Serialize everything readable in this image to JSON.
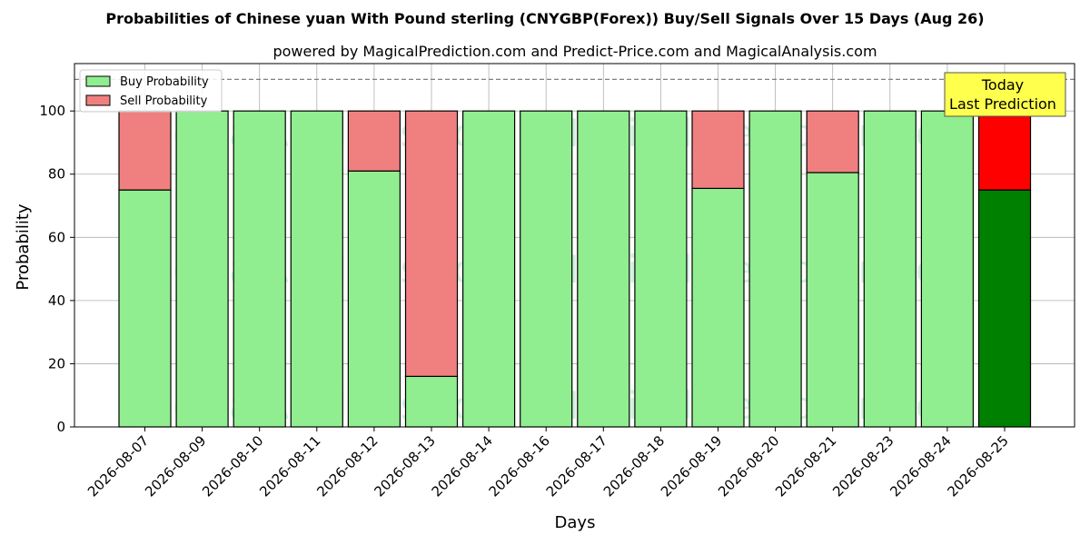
{
  "chart_data": {
    "type": "bar",
    "stacked": true,
    "title": "Probabilities of Chinese yuan With Pound sterling (CNYGBP(Forex)) Buy/Sell Signals Over 15 Days (Aug 26)",
    "subtitle": "powered by MagicalPrediction.com and Predict-Price.com and MagicalAnalysis.com",
    "xlabel": "Days",
    "ylabel": "Probability",
    "ylim": [
      0,
      115
    ],
    "yticks": [
      0,
      20,
      40,
      60,
      80,
      100
    ],
    "grid": true,
    "reference_line": 110,
    "legend_position": "top-left",
    "categories": [
      "2026-08-07",
      "2026-08-09",
      "2026-08-10",
      "2026-08-11",
      "2026-08-12",
      "2026-08-13",
      "2026-08-14",
      "2026-08-16",
      "2026-08-17",
      "2026-08-18",
      "2026-08-19",
      "2026-08-20",
      "2026-08-21",
      "2026-08-23",
      "2026-08-24",
      "2026-08-25"
    ],
    "series": [
      {
        "name": "Buy Probability",
        "color": "#90ee90",
        "highlight_color": "#008000",
        "values": [
          75,
          100,
          100,
          100,
          81,
          16,
          100,
          100,
          100,
          100,
          75.5,
          100,
          80.5,
          100,
          100,
          75
        ]
      },
      {
        "name": "Sell Probability",
        "color": "#f08080",
        "highlight_color": "#ff0000",
        "values": [
          25,
          0,
          0,
          0,
          19,
          84,
          0,
          0,
          0,
          0,
          24.5,
          0,
          19.5,
          0,
          0,
          25
        ]
      }
    ],
    "highlight_index": 15,
    "annotation": {
      "lines": [
        "Today",
        "Last Prediction"
      ],
      "bg": "#ffff4d"
    },
    "watermarks": [
      "MagicalAnalysis.com",
      "MagicalPrediction.com"
    ]
  }
}
